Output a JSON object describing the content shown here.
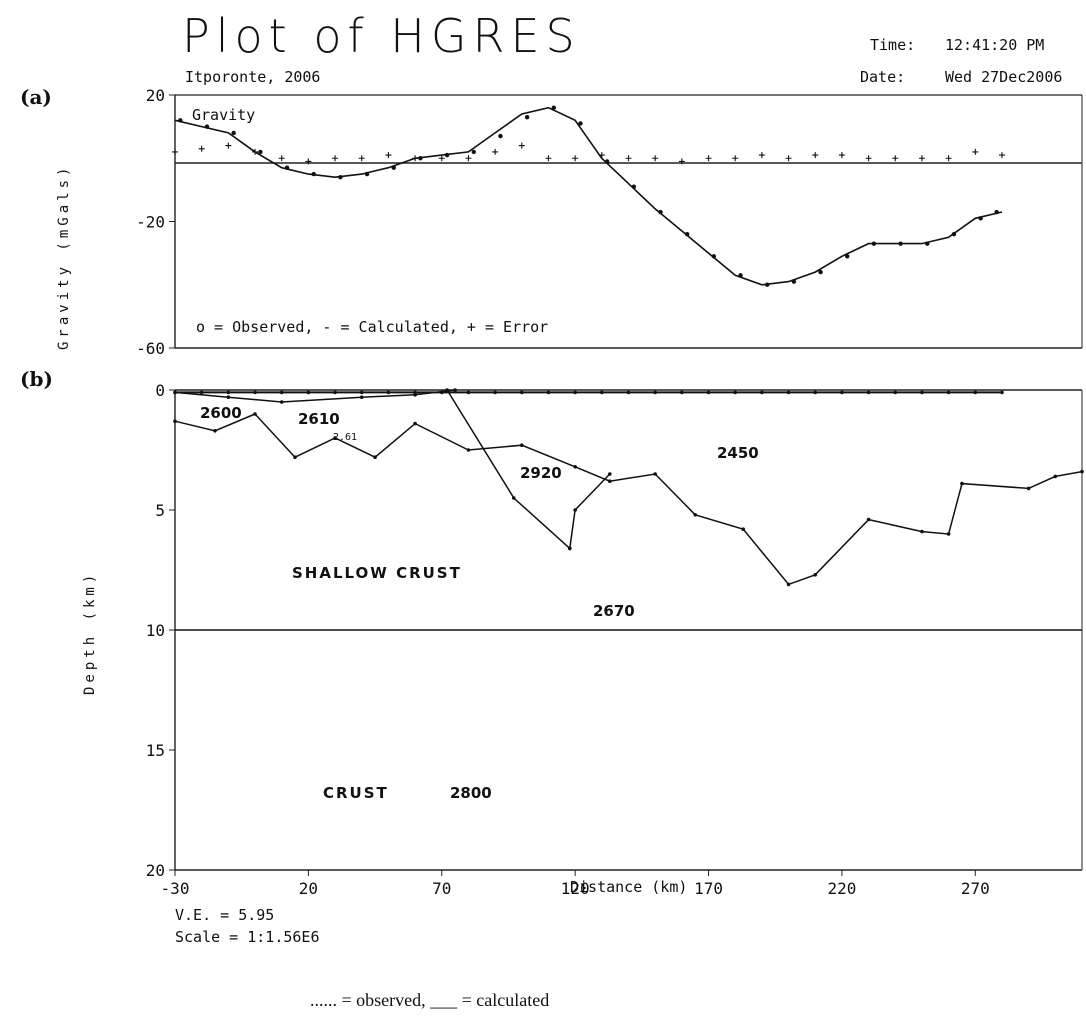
{
  "header": {
    "title": "Plot of HGRES",
    "subtitle": "Itporonte, 2006",
    "time_label": "Time:",
    "time_value": "12:41:20 PM",
    "date_label": "Date:",
    "date_value": "Wed 27Dec2006"
  },
  "footer": {
    "ve": "V.E. = 5.95",
    "scale": "Scale = 1:1.56E6",
    "caption": "...... = observed,  ___ = calculated"
  },
  "chart_data": [
    {
      "panel": "(a)",
      "type": "line",
      "title": "Gravity",
      "ylabel": "Gravity (mGals)",
      "xlim": [
        -30,
        310
      ],
      "ylim": [
        -60,
        20
      ],
      "yticks": [
        20,
        -20,
        -60
      ],
      "legend_text": "o = Observed, - = Calculated, + = Error",
      "legend_position": "bottom-left",
      "series": [
        {
          "name": "Calculated",
          "x": [
            -30,
            -20,
            -10,
            0,
            10,
            20,
            30,
            40,
            50,
            60,
            70,
            80,
            90,
            100,
            110,
            120,
            130,
            140,
            150,
            160,
            170,
            180,
            190,
            200,
            210,
            220,
            230,
            240,
            250,
            260,
            270,
            280
          ],
          "y": [
            12,
            10,
            8,
            2,
            -3,
            -5,
            -6,
            -5,
            -3,
            0,
            1,
            2,
            8,
            14,
            16,
            12,
            0,
            -8,
            -16,
            -23,
            -30,
            -37,
            -40,
            -39,
            -36,
            -31,
            -27,
            -27,
            -27,
            -25,
            -19,
            -17
          ]
        },
        {
          "name": "Observed",
          "x": [
            -28,
            -18,
            -8,
            2,
            12,
            22,
            32,
            42,
            52,
            62,
            72,
            82,
            92,
            102,
            112,
            122,
            132,
            142,
            152,
            162,
            172,
            182,
            192,
            202,
            212,
            222,
            232,
            242,
            252,
            262,
            272,
            278
          ],
          "y": [
            12,
            10,
            8,
            2,
            -3,
            -5,
            -6,
            -5,
            -3,
            0,
            1,
            2,
            7,
            13,
            16,
            11,
            -1,
            -9,
            -17,
            -24,
            -31,
            -37,
            -40,
            -39,
            -36,
            -31,
            -27,
            -27,
            -27,
            -24,
            -19,
            -17
          ]
        },
        {
          "name": "Error",
          "x": [
            -30,
            -20,
            -10,
            0,
            10,
            20,
            30,
            40,
            50,
            60,
            70,
            80,
            90,
            100,
            110,
            120,
            130,
            140,
            150,
            160,
            170,
            180,
            190,
            200,
            210,
            220,
            230,
            240,
            250,
            260,
            270,
            280
          ],
          "y": [
            2,
            3,
            4,
            2,
            0,
            -1,
            0,
            0,
            1,
            0,
            0,
            0,
            2,
            4,
            0,
            0,
            1,
            0,
            0,
            -1,
            0,
            0,
            1,
            0,
            1,
            1,
            0,
            0,
            0,
            0,
            2,
            1
          ]
        }
      ]
    },
    {
      "panel": "(b)",
      "type": "line",
      "ylabel": "Depth (km)",
      "xlabel": "Distance (km)",
      "xlim": [
        -30,
        310
      ],
      "ylim": [
        0,
        20
      ],
      "xticks": [
        -30,
        20,
        70,
        120,
        170,
        220,
        270
      ],
      "yticks": [
        0,
        5,
        10,
        15,
        20
      ],
      "interfaces": [
        {
          "name": "surface",
          "x": [
            -30,
            -20,
            -10,
            0,
            10,
            20,
            30,
            40,
            50,
            60,
            70,
            80,
            90,
            100,
            110,
            120,
            130,
            140,
            150,
            160,
            170,
            180,
            190,
            200,
            210,
            220,
            230,
            240,
            250,
            260,
            270,
            280
          ],
          "y": [
            0.1,
            0.1,
            0.1,
            0.1,
            0.1,
            0.1,
            0.1,
            0.1,
            0.1,
            0.1,
            0.1,
            0.1,
            0.1,
            0.1,
            0.1,
            0.1,
            0.1,
            0.1,
            0.1,
            0.1,
            0.1,
            0.1,
            0.1,
            0.1,
            0.1,
            0.1,
            0.1,
            0.1,
            0.1,
            0.1,
            0.1,
            0.1
          ]
        },
        {
          "name": "thin-layer-base",
          "x": [
            -30,
            -10,
            10,
            40,
            60,
            75
          ],
          "y": [
            0.1,
            0.3,
            0.5,
            0.3,
            0.2,
            0
          ]
        },
        {
          "name": "upper-basement",
          "x": [
            -30,
            -15,
            0,
            15,
            30,
            45,
            60,
            80,
            100,
            120,
            133,
            150,
            165,
            183,
            200,
            210,
            230,
            250,
            260,
            265,
            290,
            300,
            310
          ],
          "y": [
            1.3,
            1.7,
            1.0,
            2.8,
            2.0,
            2.8,
            1.4,
            2.5,
            2.3,
            3.2,
            3.8,
            3.5,
            5.2,
            5.8,
            8.1,
            7.7,
            5.4,
            5.9,
            6.0,
            3.9,
            4.1,
            3.6,
            3.4
          ]
        },
        {
          "name": "wedge-lower",
          "x": [
            72,
            97,
            118
          ],
          "y": [
            0,
            4.5,
            6.6
          ]
        },
        {
          "name": "wedge-right",
          "x": [
            118,
            120,
            133
          ],
          "y": [
            6.6,
            5.0,
            3.5
          ]
        },
        {
          "name": "shallow-crust-base",
          "x": [
            -30,
            310
          ],
          "y": [
            10,
            10
          ]
        }
      ],
      "density_labels": [
        "2600",
        "2610",
        "2920",
        "2450",
        "2670",
        "2800"
      ],
      "small_labels": [
        "2.61"
      ],
      "region_labels": [
        "SHALLOW CRUST",
        "CRUST"
      ]
    }
  ]
}
